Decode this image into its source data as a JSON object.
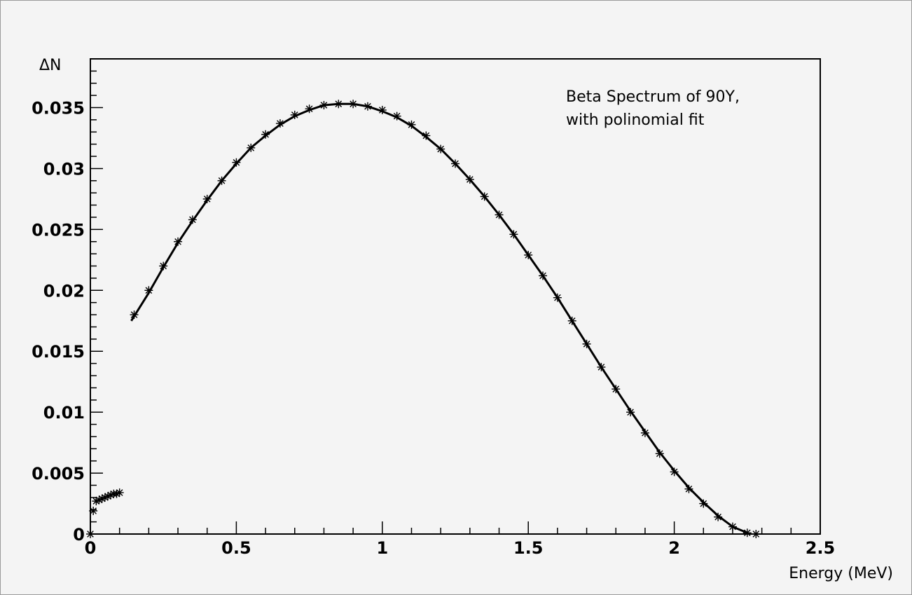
{
  "chart_data": {
    "type": "scatter",
    "annotation": [
      "Beta Spectrum of 90Y,",
      "with polinomial fit"
    ],
    "xlabel": "Energy (MeV)",
    "ylabel": "ΔN",
    "xlim": [
      0,
      2.5
    ],
    "ylim": [
      0,
      0.039
    ],
    "x_ticks": [
      0,
      0.5,
      1,
      1.5,
      2,
      2.5
    ],
    "x_tick_labels": [
      "0",
      "0.5",
      "1",
      "1.5",
      "2",
      "2.5"
    ],
    "y_ticks": [
      0,
      0.005,
      0.01,
      0.015,
      0.02,
      0.025,
      0.03,
      0.035
    ],
    "y_tick_labels": [
      "0",
      "0.005",
      "0.01",
      "0.015",
      "0.02",
      "0.025",
      "0.03",
      "0.035"
    ],
    "grid": false,
    "marker": "asterisk",
    "series": [
      {
        "kind": "points",
        "x": [
          0.0,
          0.01,
          0.02,
          0.03,
          0.04,
          0.05,
          0.06,
          0.07,
          0.08,
          0.09,
          0.1,
          0.15,
          0.2,
          0.25,
          0.3,
          0.35,
          0.4,
          0.45,
          0.5,
          0.55,
          0.6,
          0.65,
          0.7,
          0.75,
          0.8,
          0.85,
          0.9,
          0.95,
          1.0,
          1.05,
          1.1,
          1.15,
          1.2,
          1.25,
          1.3,
          1.35,
          1.4,
          1.45,
          1.5,
          1.55,
          1.6,
          1.65,
          1.7,
          1.75,
          1.8,
          1.85,
          1.9,
          1.95,
          2.0,
          2.05,
          2.1,
          2.15,
          2.2,
          2.25,
          2.28
        ],
        "y": [
          0.0,
          0.0019,
          0.0027,
          0.0028,
          0.0029,
          0.003,
          0.0031,
          0.0032,
          0.0033,
          0.0033,
          0.0034,
          0.018,
          0.02,
          0.022,
          0.024,
          0.0258,
          0.0275,
          0.029,
          0.0305,
          0.0317,
          0.0328,
          0.0337,
          0.0344,
          0.0349,
          0.0352,
          0.0353,
          0.0353,
          0.0351,
          0.0348,
          0.0343,
          0.0336,
          0.0327,
          0.0316,
          0.0304,
          0.0291,
          0.0277,
          0.0262,
          0.0246,
          0.0229,
          0.0212,
          0.0194,
          0.0175,
          0.0156,
          0.0137,
          0.0119,
          0.01,
          0.0083,
          0.0066,
          0.0051,
          0.0037,
          0.0025,
          0.0014,
          0.0006,
          0.0001,
          0.0
        ]
      },
      {
        "kind": "fit-line",
        "x": [
          0.14,
          0.2,
          0.25,
          0.3,
          0.35,
          0.4,
          0.45,
          0.5,
          0.55,
          0.6,
          0.65,
          0.7,
          0.75,
          0.8,
          0.85,
          0.9,
          0.95,
          1.0,
          1.05,
          1.1,
          1.15,
          1.2,
          1.25,
          1.3,
          1.35,
          1.4,
          1.45,
          1.5,
          1.55,
          1.6,
          1.65,
          1.7,
          1.75,
          1.8,
          1.85,
          1.9,
          1.95,
          2.0,
          2.05,
          2.1,
          2.15,
          2.2,
          2.25
        ],
        "y": [
          0.0175,
          0.0198,
          0.0219,
          0.0239,
          0.0257,
          0.0274,
          0.029,
          0.0304,
          0.0317,
          0.0327,
          0.0336,
          0.0343,
          0.0348,
          0.0352,
          0.0353,
          0.0353,
          0.0351,
          0.0347,
          0.0342,
          0.0335,
          0.0326,
          0.0316,
          0.0304,
          0.0291,
          0.0277,
          0.0262,
          0.0246,
          0.0229,
          0.0212,
          0.0194,
          0.0175,
          0.0156,
          0.0137,
          0.0119,
          0.0101,
          0.0084,
          0.0067,
          0.0052,
          0.0038,
          0.0026,
          0.0015,
          0.0006,
          0.0001
        ]
      }
    ]
  }
}
